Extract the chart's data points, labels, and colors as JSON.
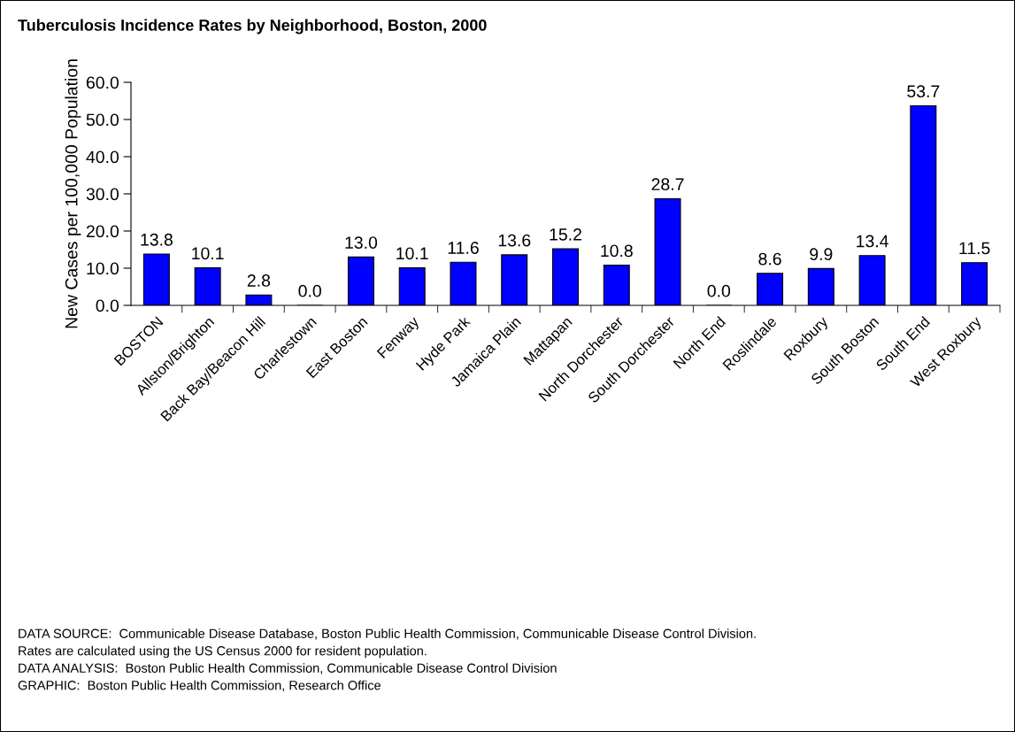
{
  "chart_data": {
    "type": "bar",
    "title": "Tuberculosis Incidence Rates by Neighborhood, Boston, 2000",
    "ylabel": "New Cases per 100,000 Population",
    "categories": [
      "BOSTON",
      "Allston/Brighton",
      "Back Bay/Beacon Hill",
      "Charlestown",
      "East Boston",
      "Fenway",
      "Hyde Park",
      "Jamaica Plain",
      "Mattapan",
      "North Dorchester",
      "South Dorchester",
      "North End",
      "Roslindale",
      "Roxbury",
      "South Boston",
      "South End",
      "West Roxbury"
    ],
    "values": [
      13.8,
      10.1,
      2.8,
      0.0,
      13.0,
      10.1,
      11.6,
      13.6,
      15.2,
      10.8,
      28.7,
      0.0,
      8.6,
      9.9,
      13.4,
      53.7,
      11.5
    ],
    "value_labels": [
      "13.8",
      "10.1",
      "2.8",
      "0.0",
      "13.0",
      "10.1",
      "11.6",
      "13.6",
      "15.2",
      "10.8",
      "28.7",
      "0.0",
      "8.6",
      "9.9",
      "13.4",
      "53.7",
      "11.5"
    ],
    "color": "#0000ff",
    "ylim": [
      0,
      60
    ],
    "yticks": [
      {
        "value": 0,
        "label": "0.0"
      },
      {
        "value": 10,
        "label": "10.0"
      },
      {
        "value": 20,
        "label": "20.0"
      },
      {
        "value": 30,
        "label": "30.0"
      },
      {
        "value": 40,
        "label": "40.0"
      },
      {
        "value": 50,
        "label": "50.0"
      },
      {
        "value": 60,
        "label": "60.0"
      }
    ],
    "grid": false,
    "annotations": [
      "DATA SOURCE:  Communicable Disease Database, Boston Public Health Commission, Communicable Disease Control Division.",
      "Rates are calculated using the US Census 2000 for resident population.",
      "DATA ANALYSIS:  Boston Public Health Commission, Communicable Disease Control Division",
      "GRAPHIC:  Boston Public Health Commission, Research Office"
    ]
  }
}
